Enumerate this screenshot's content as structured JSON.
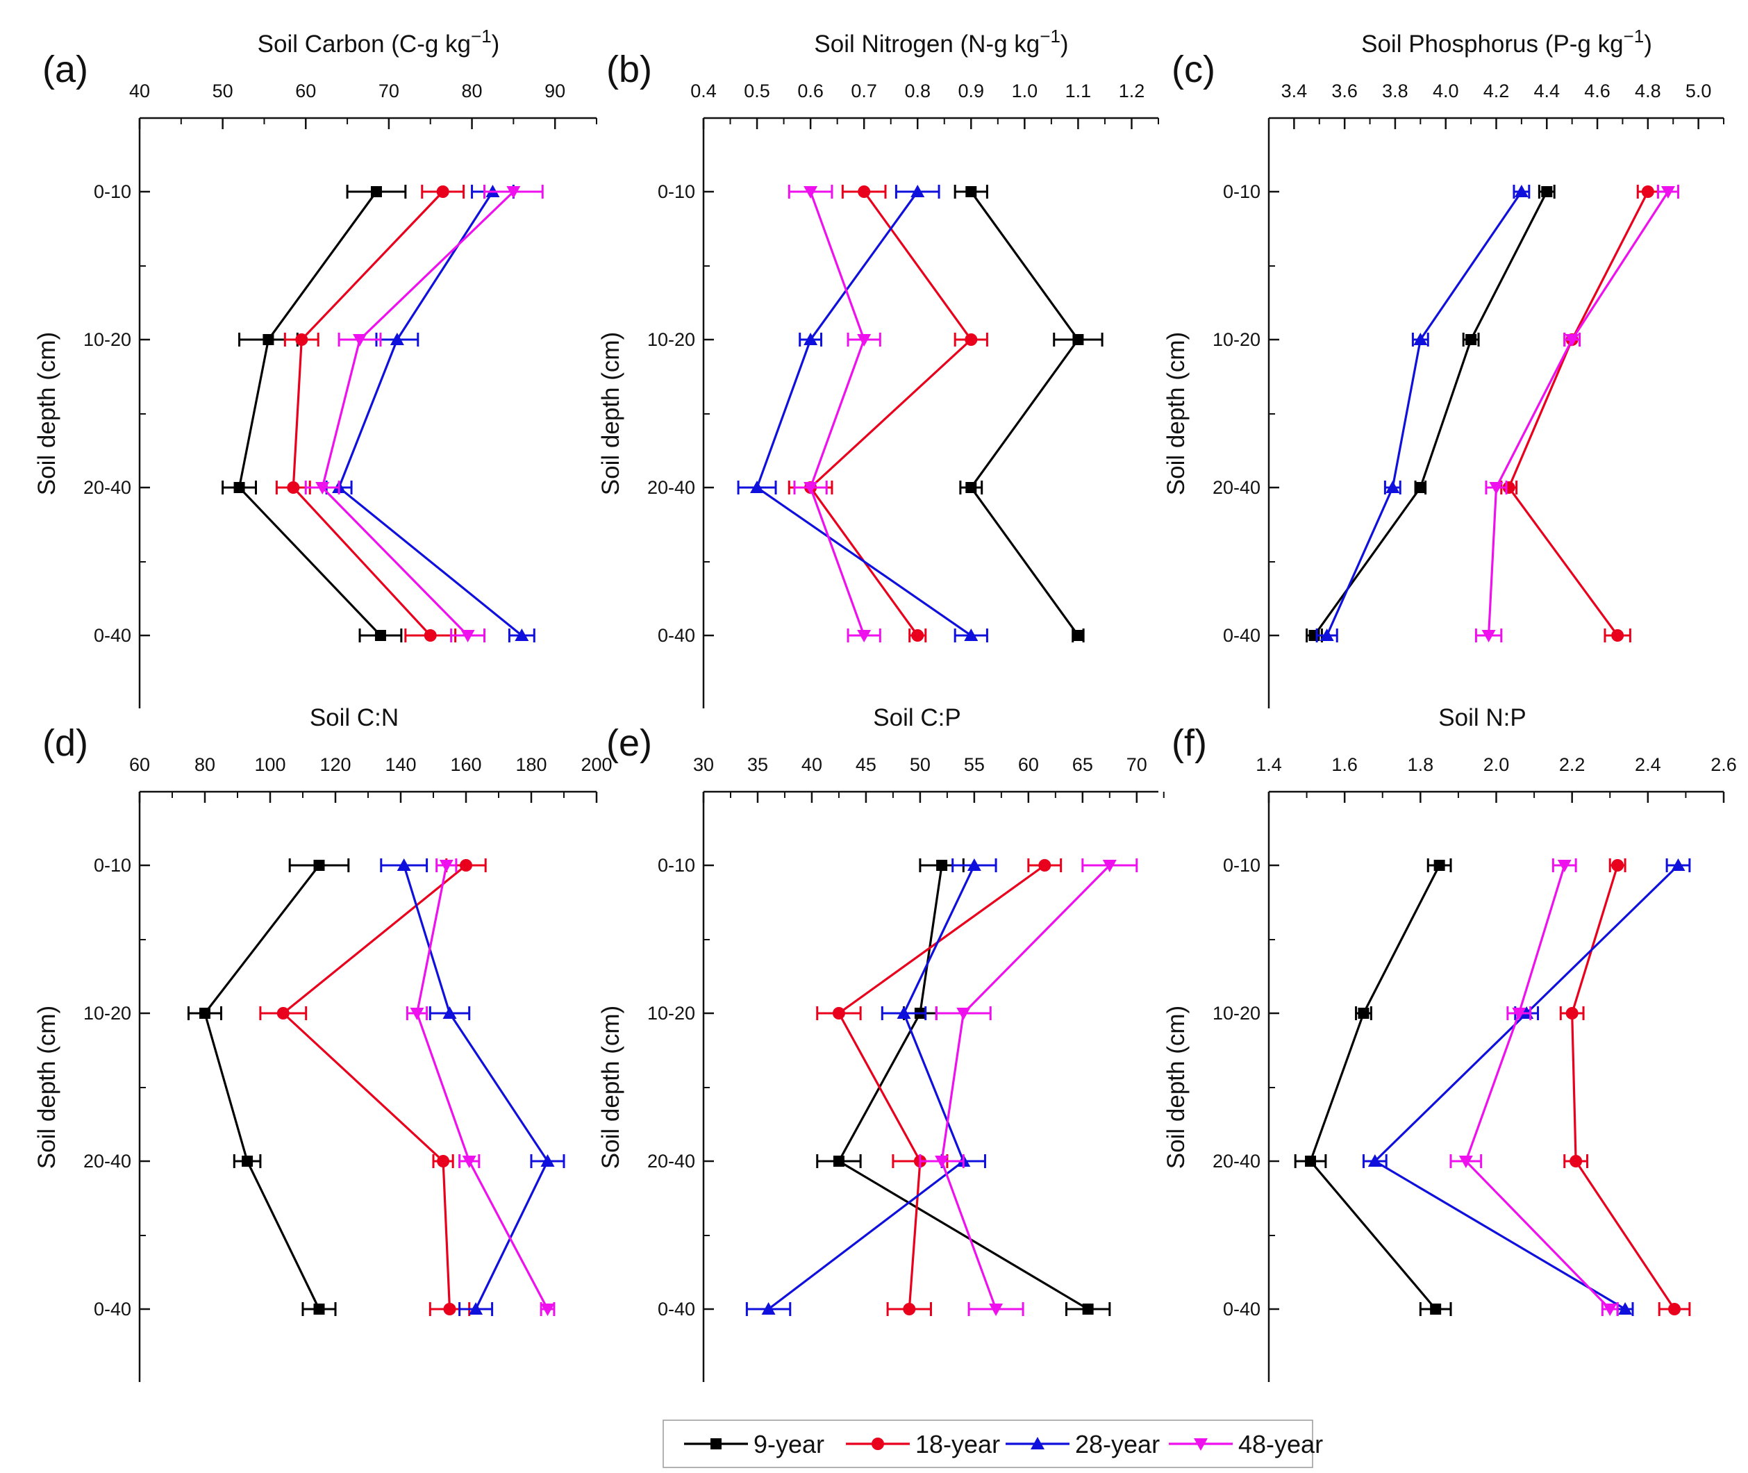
{
  "chart_data": {
    "type": "line",
    "orientation": "depth-profile",
    "y_axis_label": "Soil depth (cm)",
    "depth_categories": [
      "0-10",
      "10-20",
      "20-40",
      "0-40"
    ],
    "series_names": [
      "9-year",
      "18-year",
      "28-year",
      "48-year"
    ],
    "series_colors": [
      "#000000",
      "#e8001c",
      "#1010dd",
      "#ee11ee"
    ],
    "series_markers": [
      "square",
      "circle",
      "triangle-up",
      "triangle-down"
    ],
    "panels": [
      {
        "label": "(a)",
        "title": "Soil Carbon (C-g kg",
        "title_sup": "−1",
        "title_end": ")",
        "xlim": [
          40,
          95
        ],
        "ticks": [
          40,
          50,
          60,
          70,
          80,
          90
        ],
        "minor_step": 5,
        "tick_labels": [
          "40",
          "50",
          "60",
          "70",
          "80",
          "90"
        ],
        "series": [
          {
            "name": "9-year",
            "values": [
              68.5,
              55.5,
              52.0,
              69.0
            ],
            "errors": [
              3.5,
              3.5,
              2.0,
              2.5
            ]
          },
          {
            "name": "18-year",
            "values": [
              76.5,
              59.5,
              58.5,
              75.0
            ],
            "errors": [
              2.5,
              2.0,
              2.0,
              3.0
            ]
          },
          {
            "name": "28-year",
            "values": [
              82.5,
              71.0,
              64.0,
              86.0
            ],
            "errors": [
              2.5,
              2.5,
              1.5,
              1.5
            ]
          },
          {
            "name": "48-year",
            "values": [
              85.0,
              66.5,
              62.0,
              79.5
            ],
            "errors": [
              3.5,
              2.5,
              2.0,
              2.0
            ]
          }
        ]
      },
      {
        "label": "(b)",
        "title": "Soil Nitrogen (N-g kg",
        "title_sup": "−1",
        "title_end": ")",
        "xlim": [
          0.4,
          1.25
        ],
        "ticks": [
          0.4,
          0.5,
          0.6,
          0.7,
          0.8,
          0.9,
          1.0,
          1.1,
          1.2
        ],
        "minor_step": 0.05,
        "tick_labels": [
          "0.4",
          "0.5",
          "0.6",
          "0.7",
          "0.8",
          "0.9",
          "1.0",
          "1.1",
          "1.2"
        ],
        "series": [
          {
            "name": "9-year",
            "values": [
              0.9,
              1.1,
              0.9,
              1.1
            ],
            "errors": [
              0.03,
              0.045,
              0.02,
              0.01
            ]
          },
          {
            "name": "18-year",
            "values": [
              0.7,
              0.9,
              0.6,
              0.8
            ],
            "errors": [
              0.04,
              0.03,
              0.04,
              0.015
            ]
          },
          {
            "name": "28-year",
            "values": [
              0.8,
              0.6,
              0.5,
              0.9
            ],
            "errors": [
              0.04,
              0.02,
              0.035,
              0.03
            ]
          },
          {
            "name": "48-year",
            "values": [
              0.6,
              0.7,
              0.6,
              0.7
            ],
            "errors": [
              0.04,
              0.03,
              0.03,
              0.03
            ]
          }
        ]
      },
      {
        "label": "(c)",
        "title": "Soil Phosphorus (P-g kg",
        "title_sup": "−1",
        "title_end": ")",
        "xlim": [
          3.3,
          5.1
        ],
        "ticks": [
          3.4,
          3.6,
          3.8,
          4.0,
          4.2,
          4.4,
          4.6,
          4.8,
          5.0
        ],
        "minor_step": 0.1,
        "tick_labels": [
          "3.4",
          "3.6",
          "3.8",
          "4.0",
          "4.2",
          "4.4",
          "4.6",
          "4.8",
          "5.0"
        ],
        "series": [
          {
            "name": "9-year",
            "values": [
              4.4,
              4.1,
              3.9,
              3.48
            ],
            "errors": [
              0.03,
              0.03,
              0.02,
              0.03
            ]
          },
          {
            "name": "18-year",
            "values": [
              4.8,
              4.5,
              4.25,
              4.68
            ],
            "errors": [
              0.04,
              0.03,
              0.03,
              0.05
            ]
          },
          {
            "name": "28-year",
            "values": [
              4.3,
              3.9,
              3.79,
              3.53
            ],
            "errors": [
              0.03,
              0.03,
              0.03,
              0.04
            ]
          },
          {
            "name": "48-year",
            "values": [
              4.88,
              4.5,
              4.2,
              4.17
            ],
            "errors": [
              0.04,
              0.03,
              0.04,
              0.05
            ]
          }
        ]
      },
      {
        "label": "(d)",
        "title": "Soil C:N",
        "title_sup": "",
        "title_end": "",
        "xlim": [
          60,
          200
        ],
        "ticks": [
          60,
          80,
          100,
          120,
          140,
          160,
          180,
          200
        ],
        "minor_step": 10,
        "tick_labels": [
          "60",
          "80",
          "100",
          "120",
          "140",
          "160",
          "180",
          "200"
        ],
        "series": [
          {
            "name": "9-year",
            "values": [
              115,
              80,
              93,
              115
            ],
            "errors": [
              9,
              5,
              4,
              5
            ]
          },
          {
            "name": "18-year",
            "values": [
              160,
              104,
              153,
              155
            ],
            "errors": [
              6,
              7,
              3,
              6
            ]
          },
          {
            "name": "28-year",
            "values": [
              141,
              155,
              185,
              163
            ],
            "errors": [
              7,
              6,
              5,
              5
            ]
          },
          {
            "name": "48-year",
            "values": [
              154,
              145,
              161,
              185
            ],
            "errors": [
              3,
              3,
              3,
              2
            ]
          }
        ]
      },
      {
        "label": "(e)",
        "title": "Soil C:P",
        "title_sup": "",
        "title_end": "",
        "xlim": [
          30,
          72
        ],
        "ticks": [
          30,
          35,
          40,
          45,
          50,
          55,
          60,
          65,
          70
        ],
        "minor_step": 2.5,
        "tick_labels": [
          "30",
          "35",
          "40",
          "45",
          "50",
          "55",
          "60",
          "65",
          "70"
        ],
        "series": [
          {
            "name": "9-year",
            "values": [
              52,
              50,
              42.5,
              65.5
            ],
            "errors": [
              2,
              1.5,
              2,
              2
            ]
          },
          {
            "name": "18-year",
            "values": [
              61.5,
              42.5,
              50,
              49
            ],
            "errors": [
              1.5,
              2,
              2.5,
              2
            ]
          },
          {
            "name": "28-year",
            "values": [
              55,
              48.5,
              54,
              36
            ],
            "errors": [
              2,
              2,
              2,
              2
            ]
          },
          {
            "name": "48-year",
            "values": [
              67.5,
              54,
              52,
              57
            ],
            "errors": [
              2.5,
              2.5,
              2,
              2.5
            ]
          }
        ]
      },
      {
        "label": "(f)",
        "title": "Soil N:P",
        "title_sup": "",
        "title_end": "",
        "xlim": [
          1.4,
          2.6
        ],
        "ticks": [
          1.4,
          1.6,
          1.8,
          2.0,
          2.2,
          2.4,
          2.6
        ],
        "minor_step": 0.1,
        "tick_labels": [
          "1.4",
          "1.6",
          "1.8",
          "2.0",
          "2.2",
          "2.4",
          "2.6"
        ],
        "series": [
          {
            "name": "9-year",
            "values": [
              1.85,
              1.65,
              1.51,
              1.84
            ],
            "errors": [
              0.03,
              0.02,
              0.04,
              0.04
            ]
          },
          {
            "name": "18-year",
            "values": [
              2.32,
              2.2,
              2.21,
              2.47
            ],
            "errors": [
              0.02,
              0.03,
              0.03,
              0.04
            ]
          },
          {
            "name": "28-year",
            "values": [
              2.48,
              2.08,
              1.68,
              2.34
            ],
            "errors": [
              0.03,
              0.03,
              0.03,
              0.02
            ]
          },
          {
            "name": "48-year",
            "values": [
              2.18,
              2.06,
              1.92,
              2.3
            ],
            "errors": [
              0.03,
              0.03,
              0.04,
              0.02
            ]
          }
        ]
      }
    ]
  }
}
